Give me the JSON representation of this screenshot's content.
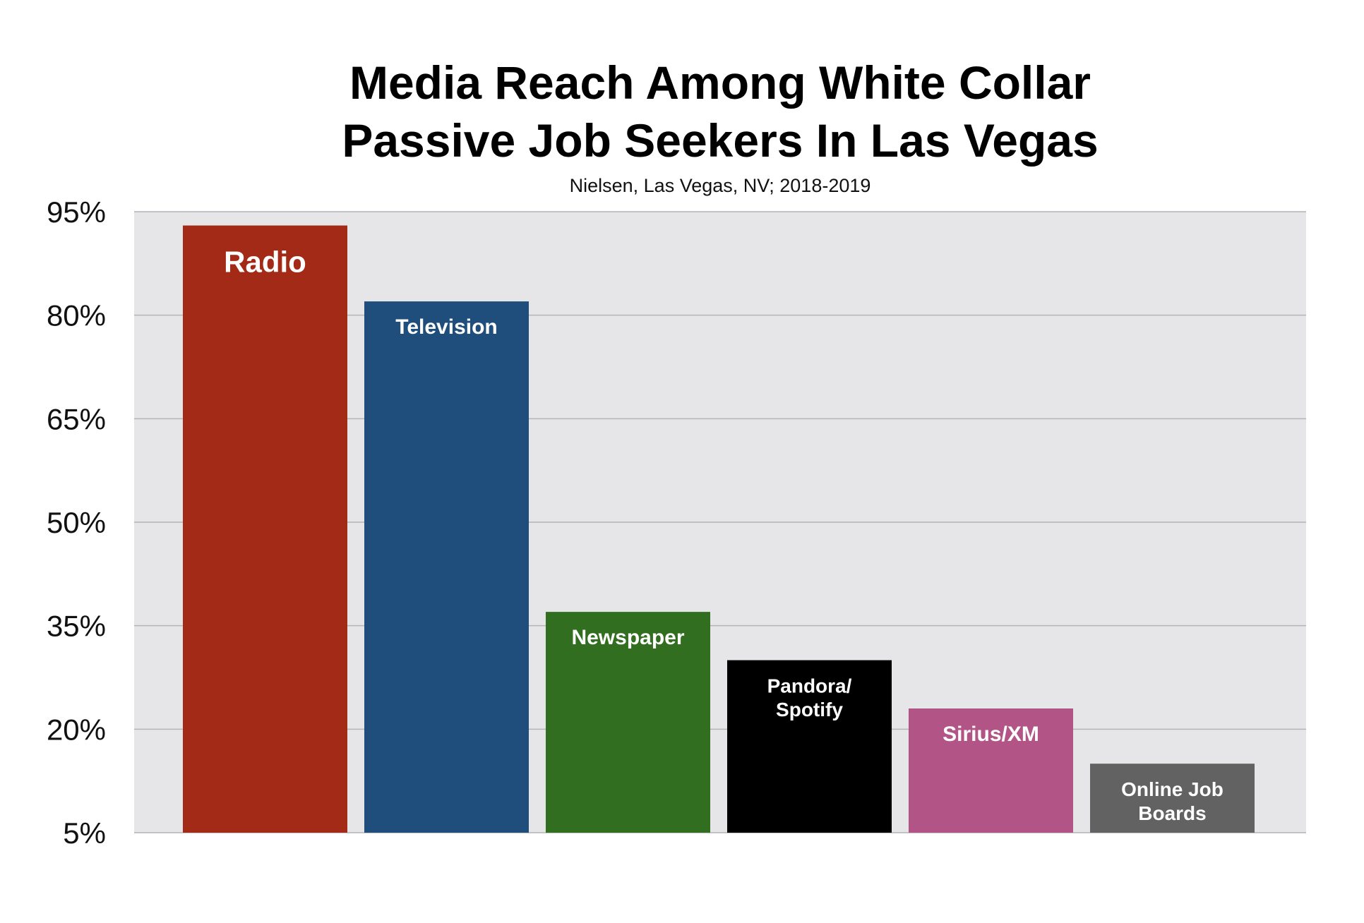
{
  "chart_data": {
    "type": "bar",
    "title_lines": [
      "Media Reach Among White Collar",
      "Passive Job Seekers In Las Vegas"
    ],
    "subtitle": "Nielsen, Las Vegas, NV; 2018-2019",
    "categories": [
      "Radio",
      "Television",
      "Newspaper",
      "Pandora/\nSpotify",
      "Sirius/XM",
      "Online Job\nBoards"
    ],
    "values": [
      93,
      82,
      37,
      30,
      23,
      15
    ],
    "colors": [
      "#a32a17",
      "#1f4d7c",
      "#316e20",
      "#000000",
      "#b25485",
      "#626262"
    ],
    "ylim": [
      5,
      95
    ],
    "yticks": [
      5,
      20,
      35,
      50,
      65,
      80,
      95
    ],
    "ytick_labels": [
      "5%",
      "20%",
      "35%",
      "50%",
      "65%",
      "80%",
      "95%"
    ],
    "grid": true,
    "plot_background": "#e6e6e8",
    "xlabel": "",
    "ylabel": ""
  }
}
